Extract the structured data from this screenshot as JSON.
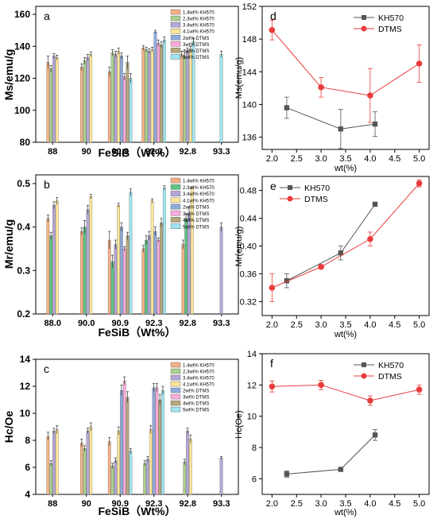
{
  "chart_data": [
    {
      "panel": "a",
      "type": "bar",
      "ylabel": "Ms/emu/g",
      "xlabel": "FeSiB（Wt%）",
      "ylim": [
        80,
        165
      ],
      "yticks": [
        80,
        100,
        120,
        140,
        160
      ],
      "categories": [
        "88",
        "90",
        "90.9",
        "92.3",
        "92.8",
        "93.3"
      ],
      "legend_position": "top-right",
      "grid": false,
      "series": [
        {
          "name": "1.4wt% KH570",
          "color": "#f4b183",
          "values": [
            130,
            127,
            124,
            139,
            135,
            null
          ],
          "errors": [
            4,
            2,
            3,
            1.5,
            2,
            null
          ]
        },
        {
          "name": "2.3wt% KH570",
          "color": "#a9d18e",
          "values": [
            126,
            131,
            136,
            138,
            134,
            null
          ],
          "errors": [
            2,
            2,
            2,
            1.5,
            2,
            null
          ]
        },
        {
          "name": "3.4wt% KH570",
          "color": "#b4a7d6",
          "values": [
            134,
            133,
            135,
            137,
            137,
            null
          ],
          "errors": [
            1.5,
            2,
            2,
            1.5,
            2,
            null
          ]
        },
        {
          "name": "4.1wt% KH570",
          "color": "#ffe699",
          "values": [
            133,
            135,
            137,
            138,
            138,
            null
          ],
          "errors": [
            1.5,
            1.5,
            2,
            1.5,
            2,
            null
          ]
        },
        {
          "name": "2wt% DTMS",
          "color": "#8faadc",
          "values": [
            null,
            null,
            134,
            149,
            null,
            null
          ],
          "errors": [
            null,
            null,
            2,
            1,
            null,
            null
          ]
        },
        {
          "name": "3wt% DTMS",
          "color": "#ffabdc",
          "values": [
            null,
            null,
            121,
            142,
            null,
            null
          ],
          "errors": [
            null,
            null,
            2,
            2,
            null,
            null
          ]
        },
        {
          "name": "4wt% DTMS",
          "color": "#b5a77c",
          "values": [
            null,
            null,
            130,
            141,
            null,
            null
          ],
          "errors": [
            null,
            null,
            4,
            2,
            null,
            null
          ]
        },
        {
          "name": "5wt% DTMS",
          "color": "#9ee5f0",
          "values": [
            null,
            null,
            120,
            144,
            143,
            135
          ],
          "errors": [
            null,
            null,
            3,
            2,
            2,
            2
          ]
        }
      ]
    },
    {
      "panel": "b",
      "type": "bar",
      "ylabel": "Mr/emu/g",
      "xlabel": "FeSiB（Wt%）",
      "ylim": [
        0.2,
        0.52
      ],
      "yticks": [
        0.2,
        0.3,
        0.4,
        0.5
      ],
      "categories": [
        "88.0",
        "90.0",
        "90.9",
        "92.3",
        "92.8",
        "93.3"
      ],
      "legend_position": "top-right",
      "grid": false,
      "series": [
        {
          "name": "1.4wt% KH570",
          "color": "#f4b183",
          "values": [
            0.42,
            0.39,
            0.37,
            0.35,
            0.36,
            null
          ],
          "errors": [
            0.008,
            0.008,
            0.02,
            0.008,
            0.01,
            null
          ]
        },
        {
          "name": "2.3wt% KH570",
          "color": "#5fc386",
          "values": [
            0.38,
            0.4,
            0.32,
            0.37,
            0.42,
            null
          ],
          "errors": [
            0.008,
            0.015,
            0.015,
            0.01,
            0.01,
            null
          ]
        },
        {
          "name": "3.4wt% KH570",
          "color": "#b4a7d6",
          "values": [
            0.45,
            0.44,
            0.36,
            0.38,
            0.43,
            0.4
          ],
          "errors": [
            0.008,
            0.01,
            0.01,
            0.01,
            0.015,
            0.01
          ]
        },
        {
          "name": "4.1wt% KH570",
          "color": "#ffe699",
          "values": [
            0.46,
            0.47,
            0.45,
            0.46,
            0.49,
            null
          ],
          "errors": [
            0.008,
            0.005,
            0.005,
            0.005,
            0.003,
            null
          ]
        },
        {
          "name": "2wt% DTMS",
          "color": "#8faadc",
          "values": [
            null,
            null,
            0.4,
            0.39,
            null,
            null
          ],
          "errors": [
            null,
            null,
            0.01,
            0.01,
            null,
            null
          ]
        },
        {
          "name": "3wt% DTMS",
          "color": "#ffabdc",
          "values": [
            null,
            null,
            0.35,
            0.37,
            null,
            null
          ],
          "errors": [
            null,
            null,
            0.005,
            0.005,
            null,
            null
          ]
        },
        {
          "name": "4wt% DTMS",
          "color": "#b5a77c",
          "values": [
            null,
            null,
            0.38,
            0.41,
            null,
            null
          ],
          "errors": [
            null,
            null,
            0.008,
            0.01,
            null,
            null
          ]
        },
        {
          "name": "5wt% DTMS",
          "color": "#9ee5f0",
          "values": [
            null,
            null,
            0.48,
            0.49,
            null,
            null
          ],
          "errors": [
            null,
            null,
            0.008,
            0.005,
            null,
            null
          ]
        }
      ]
    },
    {
      "panel": "c",
      "type": "bar",
      "ylabel": "Hc/Oe",
      "xlabel": "FeSiB（Wt%）",
      "ylim": [
        4,
        14
      ],
      "yticks": [
        4,
        6,
        8,
        10,
        12,
        14
      ],
      "categories": [
        "88",
        "90",
        "90.9",
        "92.3",
        "92.8",
        "93.3"
      ],
      "legend_position": "top-right",
      "grid": false,
      "series": [
        {
          "name": "1.4wt% KH570",
          "color": "#f4b183",
          "values": [
            8.3,
            7.8,
            7.9,
            null,
            null,
            null
          ],
          "errors": [
            0.3,
            0.3,
            0.3,
            null,
            null,
            null
          ]
        },
        {
          "name": "2.3wt% KH570",
          "color": "#a9d18e",
          "values": [
            6.3,
            7.4,
            6.1,
            6.3,
            6.4,
            null
          ],
          "errors": [
            0.2,
            0.2,
            0.2,
            0.2,
            0.2,
            null
          ]
        },
        {
          "name": "3.4wt% KH570",
          "color": "#b4a7d6",
          "values": [
            8.7,
            8.7,
            6.5,
            6.6,
            8.7,
            6.7
          ],
          "errors": [
            0.2,
            0.2,
            0.2,
            0.2,
            0.2,
            0.1
          ]
        },
        {
          "name": "4.1wt% KH570",
          "color": "#ffe699",
          "values": [
            8.8,
            9.0,
            8.7,
            8.8,
            8.1,
            null
          ],
          "errors": [
            0.3,
            0.3,
            0.3,
            0.3,
            0.3,
            null
          ]
        },
        {
          "name": "2wt% DTMS",
          "color": "#8faadc",
          "values": [
            null,
            null,
            11.7,
            11.9,
            null,
            null
          ],
          "errors": [
            null,
            null,
            0.4,
            0.3,
            null,
            null
          ]
        },
        {
          "name": "3wt% DTMS",
          "color": "#ffabdc",
          "values": [
            null,
            null,
            12.4,
            11.9,
            null,
            null
          ],
          "errors": [
            null,
            null,
            0.3,
            0.3,
            null,
            null
          ]
        },
        {
          "name": "4wt% DTMS",
          "color": "#b5a77c",
          "values": [
            null,
            null,
            11.2,
            11.0,
            null,
            null
          ],
          "errors": [
            null,
            null,
            0.4,
            0.4,
            null,
            null
          ]
        },
        {
          "name": "5wt% DTMS",
          "color": "#9ee5f0",
          "values": [
            null,
            null,
            7.2,
            11.7,
            null,
            null
          ],
          "errors": [
            null,
            null,
            0.2,
            0.3,
            null,
            null
          ]
        }
      ]
    },
    {
      "panel": "d",
      "type": "line",
      "ylabel": "Ms(emu/g)",
      "xlabel": "wt(%)",
      "xlim": [
        1.8,
        5.2
      ],
      "ylim": [
        134.5,
        152
      ],
      "xticks": [
        2.0,
        2.5,
        3.0,
        3.5,
        4.0,
        4.5,
        5.0
      ],
      "yticks": [
        136,
        140,
        144,
        148,
        152
      ],
      "legend_position": "top-right",
      "grid": false,
      "series": [
        {
          "name": "KH570",
          "color": "#555555",
          "marker": "square",
          "x": [
            2.3,
            3.4,
            4.1
          ],
          "y": [
            139.6,
            137.0,
            137.6
          ],
          "errors": [
            1.3,
            2.4,
            1.5
          ]
        },
        {
          "name": "DTMS",
          "color": "#e83c3c",
          "marker": "circle",
          "x": [
            2.0,
            3.0,
            4.0,
            5.0
          ],
          "y": [
            149.1,
            142.1,
            141.1,
            145.0
          ],
          "errors": [
            1.2,
            1.2,
            3.3,
            2.3
          ]
        }
      ]
    },
    {
      "panel": "e",
      "type": "line",
      "ylabel": "Mr(emu/g)",
      "xlabel": "wt(%)",
      "xlim": [
        1.8,
        5.2
      ],
      "ylim": [
        0.3,
        0.5
      ],
      "xticks": [
        2.0,
        2.5,
        3.0,
        3.5,
        4.0,
        4.5,
        5.0
      ],
      "yticks": [
        0.32,
        0.36,
        0.4,
        0.44,
        0.48
      ],
      "legend_position": "top-left",
      "grid": false,
      "series": [
        {
          "name": "KH570",
          "color": "#555555",
          "marker": "square",
          "x": [
            2.3,
            3.4,
            4.1
          ],
          "y": [
            0.35,
            0.39,
            0.46
          ],
          "errors": [
            0.01,
            0.01,
            0.003
          ]
        },
        {
          "name": "DTMS",
          "color": "#e83c3c",
          "marker": "circle",
          "x": [
            2.0,
            3.0,
            4.0,
            5.0
          ],
          "y": [
            0.34,
            0.37,
            0.41,
            0.49
          ],
          "errors": [
            0.02,
            0.003,
            0.01,
            0.005
          ]
        }
      ]
    },
    {
      "panel": "f",
      "type": "line",
      "ylabel": "Hc(Oe)",
      "xlabel": "wt(%)",
      "xlim": [
        1.8,
        5.2
      ],
      "ylim": [
        5,
        14
      ],
      "xticks": [
        2.0,
        2.5,
        3.0,
        3.5,
        4.0,
        4.5,
        5.0
      ],
      "yticks": [
        6,
        8,
        10,
        12,
        14
      ],
      "legend_position": "top-right",
      "grid": false,
      "series": [
        {
          "name": "KH570",
          "color": "#555555",
          "marker": "square",
          "x": [
            2.3,
            3.4,
            4.1
          ],
          "y": [
            6.3,
            6.6,
            8.8
          ],
          "errors": [
            0.2,
            0.1,
            0.35
          ]
        },
        {
          "name": "DTMS",
          "color": "#e83c3c",
          "marker": "circle",
          "x": [
            2.0,
            3.0,
            4.0,
            5.0
          ],
          "y": [
            11.9,
            12.0,
            11.0,
            11.7
          ],
          "errors": [
            0.35,
            0.3,
            0.3,
            0.3
          ]
        }
      ]
    }
  ]
}
